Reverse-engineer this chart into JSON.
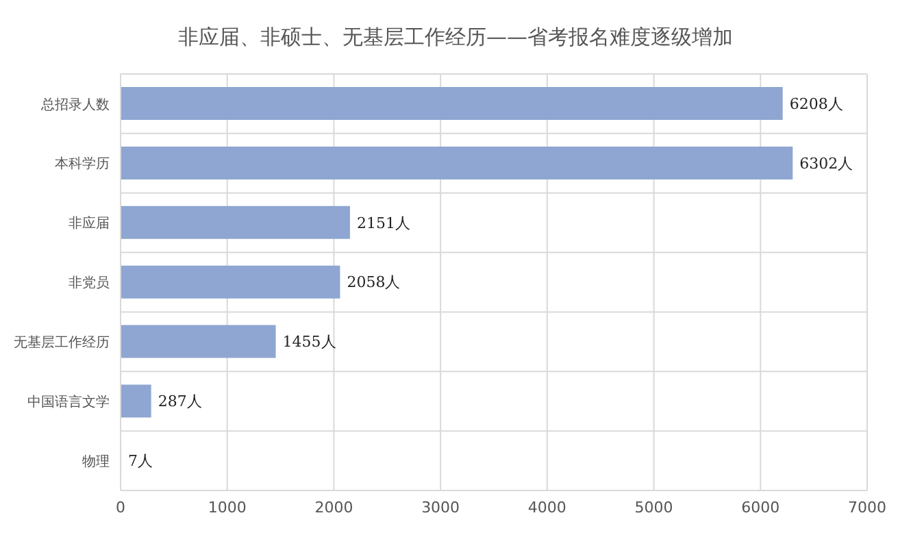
{
  "chart_data": {
    "type": "bar",
    "orientation": "horizontal",
    "title": "非应届、非硕士、无基层工作经历——省考报名难度逐级增加",
    "categories": [
      "总招录人数",
      "本科学历",
      "非应届",
      "非党员",
      "无基层工作经历",
      "中国语言文学",
      "物理"
    ],
    "values": [
      6208,
      6302,
      2151,
      2058,
      1455,
      287,
      7
    ],
    "value_labels": [
      "6208人",
      "6302人",
      "2151人",
      "2058人",
      "1455人",
      "287人",
      "7人"
    ],
    "color": "#8ea6d1",
    "xlim": [
      0,
      7000
    ],
    "xticks": [
      0,
      1000,
      2000,
      3000,
      4000,
      5000,
      6000,
      7000
    ],
    "grid": true
  }
}
